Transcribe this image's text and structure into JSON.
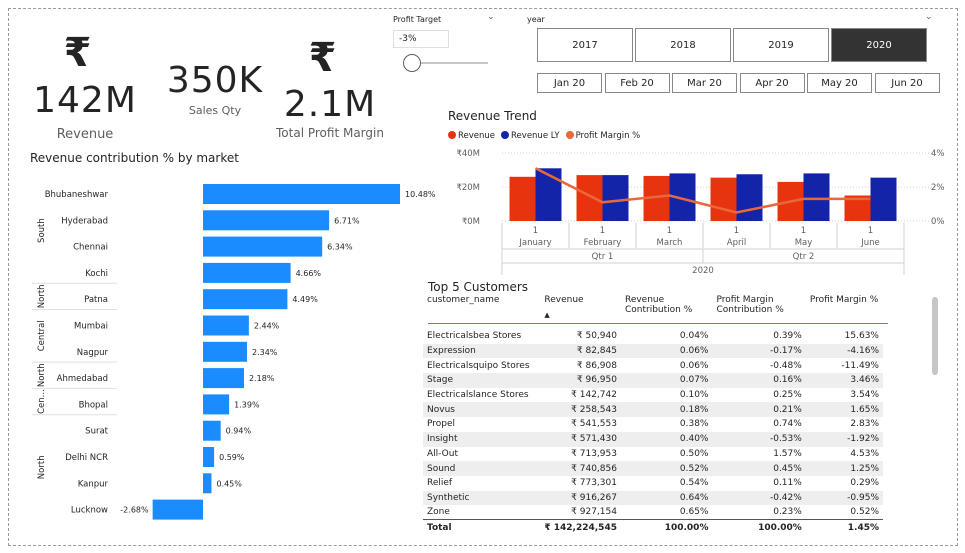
{
  "kpis": {
    "revenue": {
      "icon": "₹",
      "value": "142M",
      "label": "Revenue"
    },
    "sales_qty": {
      "value": "350K",
      "label": "Sales Qty"
    },
    "profit_margin": {
      "icon": "₹",
      "value": "2.1M",
      "label": "Total Profit Margin"
    }
  },
  "profit_target": {
    "title": "Profit Target",
    "value": "-3%",
    "slider_fraction": 0.0
  },
  "year_slicer": {
    "title": "year",
    "years": [
      "2017",
      "2018",
      "2019",
      "2020"
    ],
    "selected": "2020",
    "months": [
      "Jan 20",
      "Feb 20",
      "Mar 20",
      "Apr 20",
      "May 20",
      "Jun 20"
    ]
  },
  "market_chart": {
    "title": "Revenue contribution % by market",
    "zones": [
      "South",
      "North",
      "Central",
      "North",
      "Cen...",
      "North"
    ],
    "colors": {
      "bar": "#1a8cff"
    },
    "chart_data": {
      "type": "bar",
      "orientation": "horizontal",
      "categories": [
        "Bhubaneshwar",
        "Hyderabad",
        "Chennai",
        "Kochi",
        "Patna",
        "Mumbai",
        "Nagpur",
        "Ahmedabad",
        "Bhopal",
        "Surat",
        "Delhi NCR",
        "Kanpur",
        "Lucknow"
      ],
      "values": [
        10.48,
        6.71,
        6.34,
        4.66,
        4.49,
        2.44,
        2.34,
        2.18,
        1.39,
        0.94,
        0.59,
        0.45,
        -2.68
      ],
      "labels": [
        "10.48%",
        "6.71%",
        "6.34%",
        "4.66%",
        "4.49%",
        "2.44%",
        "2.34%",
        "2.18%",
        "1.39%",
        "0.94%",
        "0.59%",
        "0.45%",
        "-2.68%"
      ]
    }
  },
  "trend_chart": {
    "title": "Revenue Trend",
    "legend": [
      {
        "name": "Revenue",
        "color": "#e8340e"
      },
      {
        "name": "Revenue LY",
        "color": "#1424a8"
      },
      {
        "name": "Profit Margin %",
        "color": "#e8683a"
      }
    ],
    "y_left_ticks": [
      "₹40M",
      "₹20M",
      "₹0M"
    ],
    "y_right_ticks": [
      "4%",
      "2%",
      "0%"
    ],
    "x_days": [
      "1",
      "1",
      "1",
      "1",
      "1",
      "1"
    ],
    "x_months": [
      "January",
      "February",
      "March",
      "April",
      "May",
      "June"
    ],
    "quarters": [
      "Qtr 1",
      "Qtr 2"
    ],
    "year": "2020",
    "chart_data": {
      "type": "bar",
      "categories": [
        "January",
        "February",
        "March",
        "April",
        "May",
        "June"
      ],
      "series": [
        {
          "name": "Revenue",
          "values": [
            26,
            27,
            26.5,
            25.5,
            23,
            15
          ]
        },
        {
          "name": "Revenue LY",
          "values": [
            31,
            27,
            28,
            27.5,
            28,
            25.5
          ]
        },
        {
          "name": "Profit Margin %",
          "values": [
            3.1,
            1.1,
            1.5,
            0.5,
            1.3,
            1.3
          ]
        }
      ],
      "ylim": [
        0,
        40
      ],
      "y2lim": [
        0,
        4
      ]
    }
  },
  "customers": {
    "title": "Top 5 Customers",
    "columns": [
      "customer_name",
      "Revenue",
      "Revenue Contribution %",
      "Profit Margin Contribution %",
      "Profit Margin %"
    ],
    "rows": [
      [
        "Electricalsbea Stores",
        "₹ 50,940",
        "0.04%",
        "0.39%",
        "15.63%"
      ],
      [
        "Expression",
        "₹ 82,845",
        "0.06%",
        "-0.17%",
        "-4.16%"
      ],
      [
        "Electricalsquipo Stores",
        "₹ 86,908",
        "0.06%",
        "-0.48%",
        "-11.49%"
      ],
      [
        "Stage",
        "₹ 96,950",
        "0.07%",
        "0.16%",
        "3.46%"
      ],
      [
        "Electricalslance Stores",
        "₹ 142,742",
        "0.10%",
        "0.25%",
        "3.54%"
      ],
      [
        "Novus",
        "₹ 258,543",
        "0.18%",
        "0.21%",
        "1.65%"
      ],
      [
        "Propel",
        "₹ 541,553",
        "0.38%",
        "0.74%",
        "2.83%"
      ],
      [
        "Insight",
        "₹ 571,430",
        "0.40%",
        "-0.53%",
        "-1.92%"
      ],
      [
        "All-Out",
        "₹ 713,953",
        "0.50%",
        "1.57%",
        "4.53%"
      ],
      [
        "Sound",
        "₹ 740,856",
        "0.52%",
        "0.45%",
        "1.25%"
      ],
      [
        "Relief",
        "₹ 773,301",
        "0.54%",
        "0.11%",
        "0.29%"
      ],
      [
        "Synthetic",
        "₹ 916,267",
        "0.64%",
        "-0.42%",
        "-0.95%"
      ],
      [
        "Zone",
        "₹ 927,154",
        "0.65%",
        "0.23%",
        "0.52%"
      ]
    ],
    "total": [
      "Total",
      "₹ 142,224,545",
      "100.00%",
      "100.00%",
      "1.45%"
    ]
  }
}
